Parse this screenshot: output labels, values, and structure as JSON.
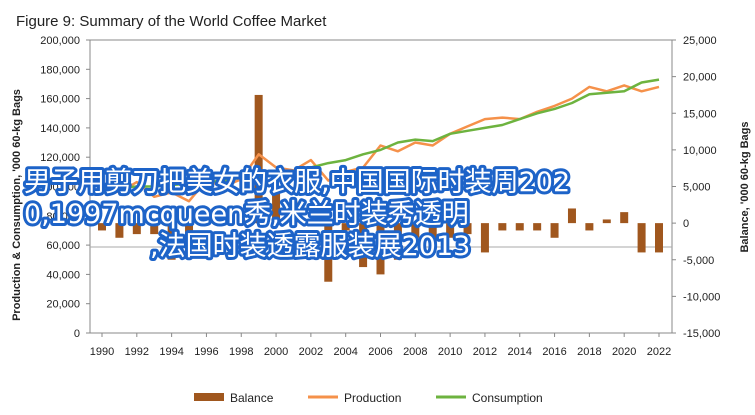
{
  "chart_data": {
    "type": "bar+line",
    "title": "Figure 9: Summary of the World Coffee Market",
    "ylabel_left": "Production & Consumption, '000 60-kg Bags",
    "ylabel_right": "Balance, '000 60-kg Bags",
    "ylim_left": [
      0,
      200000
    ],
    "ylim_right": [
      -15000,
      25000
    ],
    "left_ticks": [
      "0",
      "20,000",
      "40,000",
      "60,000",
      "80,000",
      "100,000",
      "120,000",
      "140,000",
      "160,000",
      "180,000",
      "200,000"
    ],
    "right_ticks": [
      "-15,000",
      "-10,000",
      "-5,000",
      "0",
      "5,000",
      "10,000",
      "15,000",
      "20,000",
      "25,000"
    ],
    "x_tick_labels": [
      "1990",
      "1992",
      "1994",
      "1996",
      "1998",
      "2000",
      "2002",
      "2004",
      "2006",
      "2008",
      "2010",
      "2012",
      "2014",
      "2016",
      "2018",
      "2020",
      "2022"
    ],
    "x": [
      1990,
      1991,
      1992,
      1993,
      1994,
      1995,
      1996,
      1997,
      1998,
      1999,
      2000,
      2001,
      2002,
      2003,
      2004,
      2005,
      2006,
      2007,
      2008,
      2009,
      2010,
      2011,
      2012,
      2013,
      2014,
      2015,
      2016,
      2017,
      2018,
      2019,
      2020,
      2021,
      2022
    ],
    "grid": false,
    "legend_position": "bottom",
    "series": [
      {
        "name": "Balance",
        "kind": "bar",
        "axis": "right",
        "color": "#a0571e",
        "values": [
          -1000,
          -2000,
          -1500,
          -1500,
          -5000,
          -4000,
          500,
          1000,
          500,
          17500,
          5000,
          3000,
          500,
          -8000,
          -1000,
          -6000,
          -7000,
          -5000,
          -2000,
          -3500,
          -2000,
          -1500,
          -4000,
          -1000,
          -1000,
          -1000,
          -2000,
          2000,
          -1000,
          500,
          1500,
          -4000,
          -4000
        ]
      },
      {
        "name": "Production",
        "kind": "line",
        "axis": "left",
        "color": "#f5914a",
        "values": [
          100000,
          96000,
          103000,
          93000,
          96000,
          90000,
          104000,
          100000,
          105000,
          122000,
          113000,
          111000,
          118000,
          104000,
          110000,
          113000,
          128000,
          124000,
          130000,
          128000,
          136000,
          141000,
          146000,
          147000,
          146000,
          151000,
          155000,
          160000,
          168000,
          165000,
          169000,
          165000,
          168000
        ]
      },
      {
        "name": "Consumption",
        "kind": "line",
        "axis": "left",
        "color": "#6db33f",
        "values": [
          98000,
          99000,
          100000,
          100000,
          101000,
          102000,
          103000,
          104000,
          106000,
          107000,
          108000,
          109000,
          113000,
          116000,
          118000,
          122000,
          125000,
          130000,
          132000,
          131000,
          136000,
          138000,
          140000,
          142000,
          146000,
          150000,
          153000,
          157000,
          163000,
          164000,
          165000,
          171000,
          173000
        ]
      }
    ]
  },
  "overlay": {
    "line1": "男子用剪刀把美女的衣服,中国国际时装周202",
    "line2": "0,1997mcqueen秀,米兰时装秀透明",
    "line3": ",法国时装透露服装展2013"
  }
}
